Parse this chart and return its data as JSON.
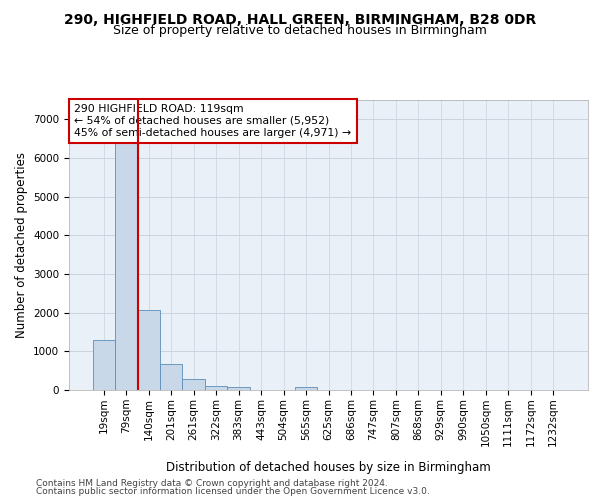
{
  "title_line1": "290, HIGHFIELD ROAD, HALL GREEN, BIRMINGHAM, B28 0DR",
  "title_line2": "Size of property relative to detached houses in Birmingham",
  "xlabel": "Distribution of detached houses by size in Birmingham",
  "ylabel": "Number of detached properties",
  "annotation_line1": "290 HIGHFIELD ROAD: 119sqm",
  "annotation_line2": "← 54% of detached houses are smaller (5,952)",
  "annotation_line3": "45% of semi-detached houses are larger (4,971) →",
  "footer_line1": "Contains HM Land Registry data © Crown copyright and database right 2024.",
  "footer_line2": "Contains public sector information licensed under the Open Government Licence v3.0.",
  "categories": [
    "19sqm",
    "79sqm",
    "140sqm",
    "201sqm",
    "261sqm",
    "322sqm",
    "383sqm",
    "443sqm",
    "504sqm",
    "565sqm",
    "625sqm",
    "686sqm",
    "747sqm",
    "807sqm",
    "868sqm",
    "929sqm",
    "990sqm",
    "1050sqm",
    "1111sqm",
    "1172sqm",
    "1232sqm"
  ],
  "values": [
    1300,
    6550,
    2080,
    680,
    290,
    110,
    70,
    0,
    0,
    70,
    0,
    0,
    0,
    0,
    0,
    0,
    0,
    0,
    0,
    0,
    0
  ],
  "bar_color": "#c8d8e8",
  "bar_edge_color": "#5b8db8",
  "vline_color": "#cc0000",
  "annotation_box_color": "#cc0000",
  "ylim": [
    0,
    7500
  ],
  "yticks": [
    0,
    1000,
    2000,
    3000,
    4000,
    5000,
    6000,
    7000
  ],
  "grid_color": "#c8d4e0",
  "bg_color": "#eaf0f8",
  "title_fontsize": 10,
  "subtitle_fontsize": 9,
  "axis_label_fontsize": 8.5,
  "tick_fontsize": 7.5
}
